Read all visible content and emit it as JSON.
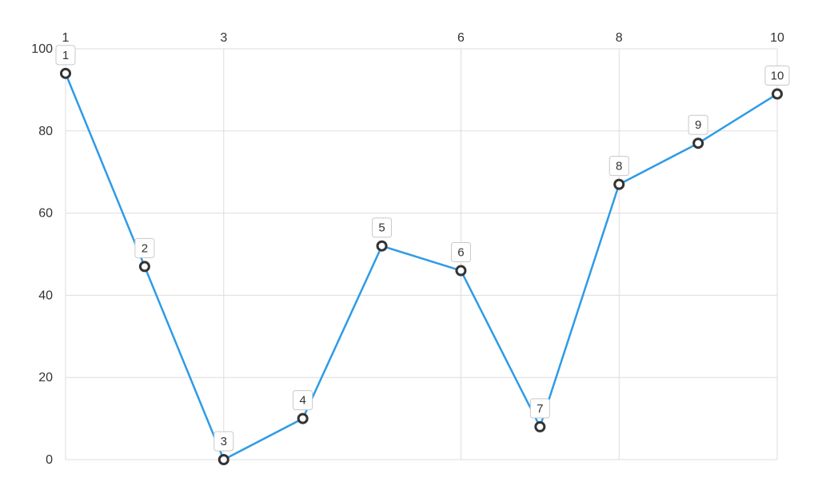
{
  "chart_data": {
    "type": "line",
    "x": [
      1,
      2,
      3,
      4,
      5,
      6,
      7,
      8,
      9,
      10
    ],
    "series": [
      {
        "values": [
          94,
          47,
          0,
          10,
          52,
          46,
          8,
          67,
          77,
          89
        ],
        "color": "#2e9be6"
      }
    ],
    "data_labels": [
      "1",
      "2",
      "3",
      "4",
      "5",
      "6",
      "7",
      "8",
      "9",
      "10"
    ],
    "x_axis": {
      "position": "top",
      "ticks": [
        "1",
        "3",
        "6",
        "8",
        "10"
      ]
    },
    "y_axis": {
      "ticks": [
        "0",
        "20",
        "40",
        "60",
        "80",
        "100"
      ],
      "ylim": [
        0,
        100
      ]
    },
    "grid": true,
    "title": "",
    "xlabel": "",
    "ylabel": ""
  }
}
